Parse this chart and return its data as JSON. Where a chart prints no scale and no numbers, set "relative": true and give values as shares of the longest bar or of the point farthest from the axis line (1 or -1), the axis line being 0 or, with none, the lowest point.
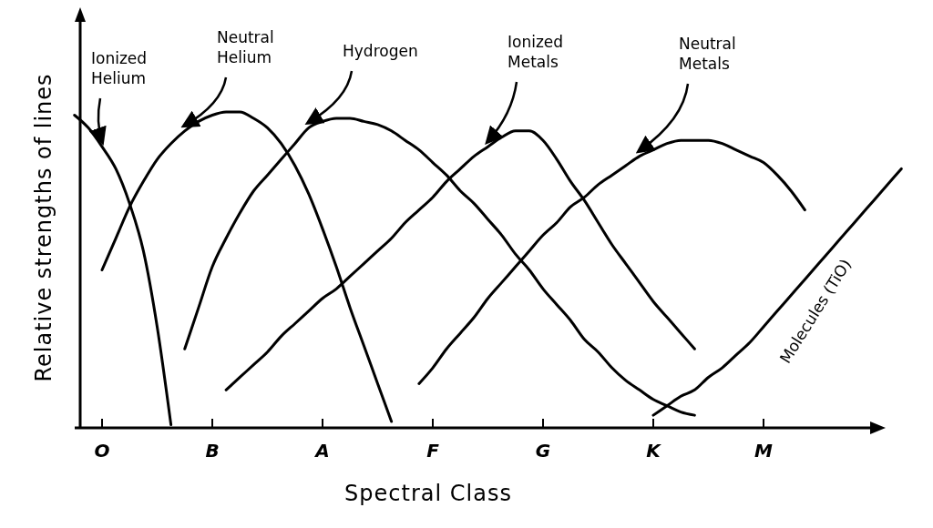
{
  "chart_data": {
    "type": "line",
    "relative": true,
    "xlabel": "Spectral Class",
    "ylabel": "Relative strengths of lines",
    "legend": false,
    "marker": "none",
    "line_style": "solid",
    "grid": false,
    "categories": [
      null,
      null,
      "O",
      null,
      null,
      null,
      null,
      null,
      null,
      null,
      "B",
      null,
      null,
      null,
      null,
      null,
      null,
      null,
      "A",
      null,
      null,
      null,
      null,
      null,
      null,
      null,
      "F",
      null,
      null,
      null,
      null,
      null,
      null,
      null,
      "G",
      null,
      null,
      null,
      null,
      null,
      null,
      null,
      "K",
      null,
      null,
      null,
      null,
      null,
      null,
      null,
      "M",
      null,
      null,
      null,
      null,
      null,
      null,
      null,
      null,
      null,
      null
    ],
    "series": [
      {
        "name": "Ionized Helium",
        "color": "#000000",
        "values": [
          0.99,
          0.95,
          0.89,
          0.82,
          0.71,
          0.56,
          0.32,
          0.01,
          null,
          null,
          null,
          null,
          null,
          null,
          null,
          null,
          null,
          null,
          null,
          null,
          null,
          null,
          null,
          null,
          null,
          null,
          null,
          null,
          null,
          null,
          null,
          null,
          null,
          null,
          null,
          null,
          null,
          null,
          null,
          null,
          null,
          null,
          null,
          null,
          null,
          null,
          null,
          null,
          null,
          null,
          null,
          null,
          null,
          null,
          null,
          null,
          null,
          null,
          null,
          null,
          null
        ]
      },
      {
        "name": "Neutral Helium",
        "color": "#000000",
        "values": [
          null,
          null,
          0.5,
          0.6,
          0.7,
          0.78,
          0.85,
          0.9,
          0.94,
          0.97,
          0.99,
          1.0,
          1.0,
          0.98,
          0.95,
          0.9,
          0.83,
          0.74,
          0.63,
          0.51,
          0.38,
          0.26,
          0.14,
          0.02,
          null,
          null,
          null,
          null,
          null,
          null,
          null,
          null,
          null,
          null,
          null,
          null,
          null,
          null,
          null,
          null,
          null,
          null,
          null,
          null,
          null,
          null,
          null,
          null,
          null,
          null,
          null,
          null,
          null,
          null,
          null,
          null,
          null,
          null,
          null,
          null,
          null
        ]
      },
      {
        "name": "Hydrogen",
        "color": "#000000",
        "values": [
          null,
          null,
          null,
          null,
          null,
          null,
          null,
          null,
          0.25,
          0.38,
          0.51,
          0.6,
          0.68,
          0.75,
          0.8,
          0.85,
          0.9,
          0.95,
          0.97,
          0.98,
          0.98,
          0.97,
          0.96,
          0.94,
          0.91,
          0.88,
          0.84,
          0.8,
          0.75,
          0.71,
          0.66,
          0.61,
          0.55,
          0.5,
          0.44,
          0.39,
          0.34,
          0.28,
          0.24,
          0.19,
          0.15,
          0.12,
          0.09,
          0.07,
          0.05,
          0.04,
          null,
          null,
          null,
          null,
          null,
          null,
          null,
          null,
          null,
          null,
          null,
          null,
          null,
          null,
          null
        ]
      },
      {
        "name": "Ionized Metals",
        "color": "#000000",
        "values": [
          null,
          null,
          null,
          null,
          null,
          null,
          null,
          null,
          null,
          null,
          null,
          0.12,
          0.16,
          0.2,
          0.24,
          0.29,
          0.33,
          0.37,
          0.41,
          0.44,
          0.48,
          0.52,
          0.56,
          0.6,
          0.65,
          0.69,
          0.73,
          0.78,
          0.82,
          0.86,
          0.89,
          0.92,
          0.94,
          0.94,
          0.91,
          0.85,
          0.78,
          0.72,
          0.65,
          0.58,
          0.52,
          0.46,
          0.4,
          0.35,
          0.3,
          0.25,
          null,
          null,
          null,
          null,
          null,
          null,
          null,
          null,
          null,
          null,
          null,
          null,
          null,
          null,
          null
        ]
      },
      {
        "name": "Neutral Metals",
        "color": "#000000",
        "values": [
          null,
          null,
          null,
          null,
          null,
          null,
          null,
          null,
          null,
          null,
          null,
          null,
          null,
          null,
          null,
          null,
          null,
          null,
          null,
          null,
          null,
          null,
          null,
          null,
          null,
          0.14,
          0.19,
          0.25,
          0.3,
          0.35,
          0.41,
          0.46,
          0.51,
          0.56,
          0.61,
          0.65,
          0.7,
          0.73,
          0.77,
          0.8,
          0.83,
          0.86,
          0.88,
          0.9,
          0.91,
          0.91,
          0.91,
          0.9,
          0.88,
          0.86,
          0.84,
          0.8,
          0.75,
          0.69,
          null,
          null,
          null,
          null,
          null,
          null,
          null
        ]
      },
      {
        "name": "Molecules (TiO)",
        "color": "#000000",
        "values": [
          null,
          null,
          null,
          null,
          null,
          null,
          null,
          null,
          null,
          null,
          null,
          null,
          null,
          null,
          null,
          null,
          null,
          null,
          null,
          null,
          null,
          null,
          null,
          null,
          null,
          null,
          null,
          null,
          null,
          null,
          null,
          null,
          null,
          null,
          null,
          null,
          null,
          null,
          null,
          null,
          null,
          null,
          0.04,
          0.07,
          0.1,
          0.12,
          0.16,
          0.19,
          0.23,
          0.27,
          0.32,
          0.37,
          0.42,
          0.47,
          0.52,
          0.57,
          0.62,
          0.67,
          0.72,
          0.77,
          0.82
        ]
      }
    ]
  }
}
